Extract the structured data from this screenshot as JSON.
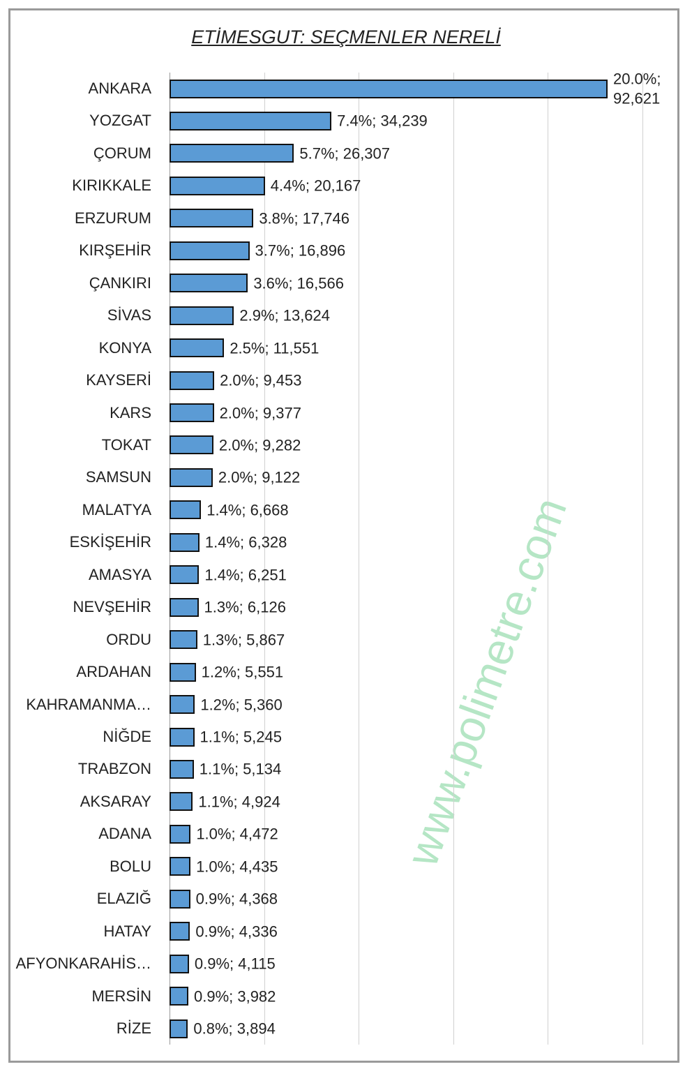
{
  "chart_data": {
    "type": "bar",
    "orientation": "horizontal",
    "title": "ETİMESGUT: SEÇMENLER NERELİ",
    "watermark": "www.polimetre.com",
    "categories": [
      "ANKARA",
      "YOZGAT",
      "ÇORUM",
      "KIRIKKALE",
      "ERZURUM",
      "KIRŞEHİR",
      "ÇANKIRI",
      "SİVAS",
      "KONYA",
      "KAYSERİ",
      "KARS",
      "TOKAT",
      "SAMSUN",
      "MALATYA",
      "ESKİŞEHİR",
      "AMASYA",
      "NEVŞEHİR",
      "ORDU",
      "ARDAHAN",
      "KAHRAMANMA…",
      "NİĞDE",
      "TRABZON",
      "AKSARAY",
      "ADANA",
      "BOLU",
      "ELAZIĞ",
      "HATAY",
      "AFYONKARAHİS…",
      "MERSİN",
      "RİZE"
    ],
    "values": [
      92621,
      34239,
      26307,
      20167,
      17746,
      16896,
      16566,
      13624,
      11551,
      9453,
      9377,
      9282,
      9122,
      6668,
      6328,
      6251,
      6126,
      5867,
      5551,
      5360,
      5245,
      5134,
      4924,
      4472,
      4435,
      4368,
      4336,
      4115,
      3982,
      3894
    ],
    "value_labels": [
      "20.0%; 92,621",
      "7.4%; 34,239",
      "5.7%; 26,307",
      "4.4%; 20,167",
      "3.8%; 17,746",
      "3.7%; 16,896",
      "3.6%; 16,566",
      "2.9%; 13,624",
      "2.5%; 11,551",
      "2.0%; 9,453",
      "2.0%; 9,377",
      "2.0%; 9,282",
      "2.0%; 9,122",
      "1.4%; 6,668",
      "1.4%; 6,328",
      "1.4%; 6,251",
      "1.3%; 6,126",
      "1.3%; 5,867",
      "1.2%; 5,551",
      "1.2%; 5,360",
      "1.1%; 5,245",
      "1.1%; 5,134",
      "1.1%; 4,924",
      "1.0%; 4,472",
      "1.0%; 4,435",
      "0.9%; 4,368",
      "0.9%; 4,336",
      "0.9%; 4,115",
      "0.9%; 3,982",
      "0.8%; 3,894"
    ],
    "color": "#5b9bd5",
    "xlim": [
      0,
      100000
    ],
    "xticks": [
      0,
      20000,
      40000,
      60000,
      80000,
      100000
    ],
    "grid": true
  }
}
